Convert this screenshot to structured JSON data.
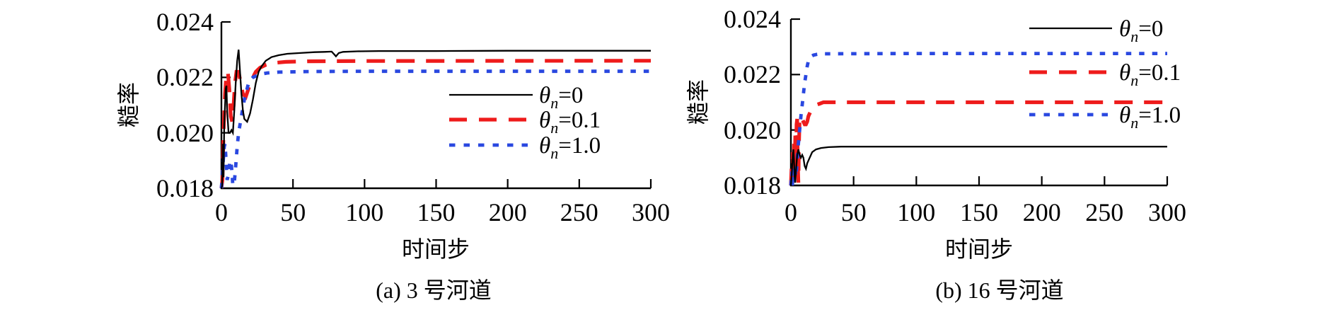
{
  "figure": {
    "background": "#ffffff",
    "panel_count": 2
  },
  "chart_data": [
    {
      "type": "line",
      "title": "(a) 3 号河道",
      "xlabel": "时间步",
      "ylabel": "糙率",
      "xlim": [
        0,
        300
      ],
      "ylim": [
        0.018,
        0.024
      ],
      "grid": false,
      "legend_position": "inside-right-middle",
      "x_tick_labels": [
        "0",
        "50",
        "100",
        "150",
        "200",
        "250",
        "300"
      ],
      "x_ticks": [
        0,
        50,
        100,
        150,
        200,
        250,
        300
      ],
      "y_tick_labels": [
        "0.024",
        "0.022",
        "0.020",
        "0.018"
      ],
      "y_ticks": [
        0.024,
        0.022,
        0.02,
        0.018
      ],
      "legend": [
        {
          "sym": "θ",
          "sub": "n",
          "val": "=0"
        },
        {
          "sym": "θ",
          "sub": "n",
          "val": "=0.1"
        },
        {
          "sym": "θ",
          "sub": "n",
          "val": "=1.0"
        }
      ],
      "series": [
        {
          "name": "θ_n=0",
          "color": "#000000",
          "style": "solid",
          "points": [
            [
              0,
              0.018
            ],
            [
              0.5,
              0.0181
            ],
            [
              1,
              0.0196
            ],
            [
              1.5,
              0.0184
            ],
            [
              2,
              0.0203
            ],
            [
              3,
              0.0216
            ],
            [
              3.5,
              0.0217
            ],
            [
              4,
              0.0208
            ],
            [
              5,
              0.02
            ],
            [
              6,
              0.02
            ],
            [
              7,
              0.0201
            ],
            [
              8,
              0.02
            ],
            [
              9,
              0.0208
            ],
            [
              10,
              0.0218
            ],
            [
              11,
              0.0226
            ],
            [
              12,
              0.023
            ],
            [
              13,
              0.0222
            ],
            [
              14,
              0.0214
            ],
            [
              15,
              0.0208
            ],
            [
              16,
              0.0205
            ],
            [
              18,
              0.0204
            ],
            [
              20,
              0.0207
            ],
            [
              22,
              0.0212
            ],
            [
              24,
              0.0218
            ],
            [
              26,
              0.0222
            ],
            [
              28,
              0.0224
            ],
            [
              31,
              0.0226
            ],
            [
              35,
              0.02273
            ],
            [
              40,
              0.0228
            ],
            [
              46,
              0.02285
            ],
            [
              55,
              0.02288
            ],
            [
              65,
              0.02291
            ],
            [
              72,
              0.02292
            ],
            [
              77,
              0.02293
            ],
            [
              79,
              0.02282
            ],
            [
              80,
              0.02276
            ],
            [
              82,
              0.02288
            ],
            [
              85,
              0.02292
            ],
            [
              95,
              0.02294
            ],
            [
              110,
              0.02295
            ],
            [
              150,
              0.02295
            ],
            [
              200,
              0.02296
            ],
            [
              250,
              0.02296
            ],
            [
              300,
              0.02296
            ]
          ]
        },
        {
          "name": "θ_n=0.1",
          "color": "#ee1b1b",
          "style": "dashed",
          "points": [
            [
              0,
              0.018
            ],
            [
              0.7,
              0.0183
            ],
            [
              1.5,
              0.02
            ],
            [
              2.5,
              0.0214
            ],
            [
              3.5,
              0.0221
            ],
            [
              4.5,
              0.0222
            ],
            [
              5.5,
              0.0216
            ],
            [
              6.5,
              0.0206
            ],
            [
              7.5,
              0.0204
            ],
            [
              8.5,
              0.021
            ],
            [
              9.5,
              0.0218
            ],
            [
              10.5,
              0.0222
            ],
            [
              12,
              0.0222
            ],
            [
              13.5,
              0.0218
            ],
            [
              15,
              0.0214
            ],
            [
              17,
              0.0213
            ],
            [
              19,
              0.0216
            ],
            [
              21,
              0.0219
            ],
            [
              24,
              0.0222
            ],
            [
              27,
              0.02235
            ],
            [
              31,
              0.02245
            ],
            [
              36,
              0.02252
            ],
            [
              45,
              0.02256
            ],
            [
              60,
              0.02258
            ],
            [
              100,
              0.02259
            ],
            [
              300,
              0.0226
            ]
          ]
        },
        {
          "name": "θ_n=1.0",
          "color": "#2a48e0",
          "style": "dotted",
          "points": [
            [
              0,
              0.018
            ],
            [
              1,
              0.0188
            ],
            [
              2,
              0.0195
            ],
            [
              2.5,
              0.0196
            ],
            [
              3,
              0.0192
            ],
            [
              4,
              0.0183
            ],
            [
              5,
              0.0185
            ],
            [
              6,
              0.019
            ],
            [
              7,
              0.0188
            ],
            [
              8,
              0.0181
            ],
            [
              9,
              0.0182
            ],
            [
              10,
              0.0188
            ],
            [
              11,
              0.0195
            ],
            [
              12,
              0.02
            ],
            [
              13,
              0.0203
            ],
            [
              14,
              0.0206
            ],
            [
              15,
              0.0209
            ],
            [
              16,
              0.0212
            ],
            [
              17,
              0.0214
            ],
            [
              18,
              0.0216
            ],
            [
              19,
              0.0218
            ],
            [
              20,
              0.0219
            ],
            [
              22,
              0.022
            ],
            [
              25,
              0.02207
            ],
            [
              28,
              0.02212
            ],
            [
              32,
              0.02216
            ],
            [
              40,
              0.02219
            ],
            [
              60,
              0.02221
            ],
            [
              100,
              0.02222
            ],
            [
              300,
              0.02222
            ]
          ]
        }
      ]
    },
    {
      "type": "line",
      "title": "(b) 16 号河道",
      "xlabel": "时间步",
      "ylabel": "糙率",
      "xlim": [
        0,
        300
      ],
      "ylim": [
        0.018,
        0.024
      ],
      "grid": false,
      "legend_position": "inside-top-right",
      "x_tick_labels": [
        "0",
        "50",
        "100",
        "150",
        "200",
        "250",
        "300"
      ],
      "x_ticks": [
        0,
        50,
        100,
        150,
        200,
        250,
        300
      ],
      "y_tick_labels": [
        "0.024",
        "0.022",
        "0.020",
        "0.018"
      ],
      "y_ticks": [
        0.024,
        0.022,
        0.02,
        0.018
      ],
      "legend": [
        {
          "sym": "θ",
          "sub": "n",
          "val": "=0"
        },
        {
          "sym": "θ",
          "sub": "n",
          "val": "=0.1"
        },
        {
          "sym": "θ",
          "sub": "n",
          "val": "=1.0"
        }
      ],
      "series": [
        {
          "name": "θ_n=0",
          "color": "#000000",
          "style": "solid",
          "points": [
            [
              0,
              0.018
            ],
            [
              0.7,
              0.0184
            ],
            [
              1.5,
              0.0191
            ],
            [
              2,
              0.0193
            ],
            [
              2.5,
              0.0189
            ],
            [
              3,
              0.0183
            ],
            [
              3.5,
              0.0181
            ],
            [
              4,
              0.0185
            ],
            [
              5,
              0.0191
            ],
            [
              6,
              0.0193
            ],
            [
              7,
              0.0191
            ],
            [
              8,
              0.019
            ],
            [
              9,
              0.0191
            ],
            [
              10,
              0.019
            ],
            [
              11,
              0.0187
            ],
            [
              12,
              0.0186
            ],
            [
              13,
              0.0188
            ],
            [
              15,
              0.019
            ],
            [
              17,
              0.0192
            ],
            [
              20,
              0.0193
            ],
            [
              24,
              0.01935
            ],
            [
              30,
              0.01938
            ],
            [
              40,
              0.0194
            ],
            [
              100,
              0.0194
            ],
            [
              300,
              0.0194
            ]
          ]
        },
        {
          "name": "θ_n=0.1",
          "color": "#ee1b1b",
          "style": "dashed",
          "points": [
            [
              0,
              0.018
            ],
            [
              0.5,
              0.0186
            ],
            [
              1,
              0.018
            ],
            [
              1.5,
              0.0192
            ],
            [
              2,
              0.0181
            ],
            [
              2.5,
              0.0195
            ],
            [
              3,
              0.0182
            ],
            [
              3.5,
              0.0198
            ],
            [
              4,
              0.0184
            ],
            [
              4.5,
              0.0202
            ],
            [
              5,
              0.0204
            ],
            [
              5.5,
              0.0188
            ],
            [
              6,
              0.0181
            ],
            [
              6.5,
              0.0196
            ],
            [
              7,
              0.0204
            ],
            [
              8,
              0.0205
            ],
            [
              9,
              0.0204
            ],
            [
              10,
              0.0203
            ],
            [
              11,
              0.0202
            ],
            [
              12,
              0.0202
            ],
            [
              13,
              0.0203
            ],
            [
              14,
              0.0205
            ],
            [
              16,
              0.0207
            ],
            [
              18,
              0.0208
            ],
            [
              20,
              0.0209
            ],
            [
              23,
              0.02095
            ],
            [
              26,
              0.021
            ],
            [
              100,
              0.021
            ],
            [
              300,
              0.021
            ]
          ]
        },
        {
          "name": "θ_n=1.0",
          "color": "#2a48e0",
          "style": "dotted",
          "points": [
            [
              0,
              0.018
            ],
            [
              0.7,
              0.0185
            ],
            [
              1.2,
              0.018
            ],
            [
              1.8,
              0.0186
            ],
            [
              2.4,
              0.0181
            ],
            [
              3,
              0.0187
            ],
            [
              4,
              0.0183
            ],
            [
              5,
              0.0189
            ],
            [
              6,
              0.0195
            ],
            [
              7,
              0.02
            ],
            [
              8,
              0.0205
            ],
            [
              9,
              0.0209
            ],
            [
              10,
              0.0213
            ],
            [
              11,
              0.0217
            ],
            [
              12,
              0.022
            ],
            [
              13,
              0.0223
            ],
            [
              14,
              0.0225
            ],
            [
              16,
              0.02265
            ],
            [
              18,
              0.0227
            ],
            [
              21,
              0.02273
            ],
            [
              25,
              0.02275
            ],
            [
              100,
              0.02276
            ],
            [
              300,
              0.02276
            ]
          ]
        }
      ]
    }
  ]
}
